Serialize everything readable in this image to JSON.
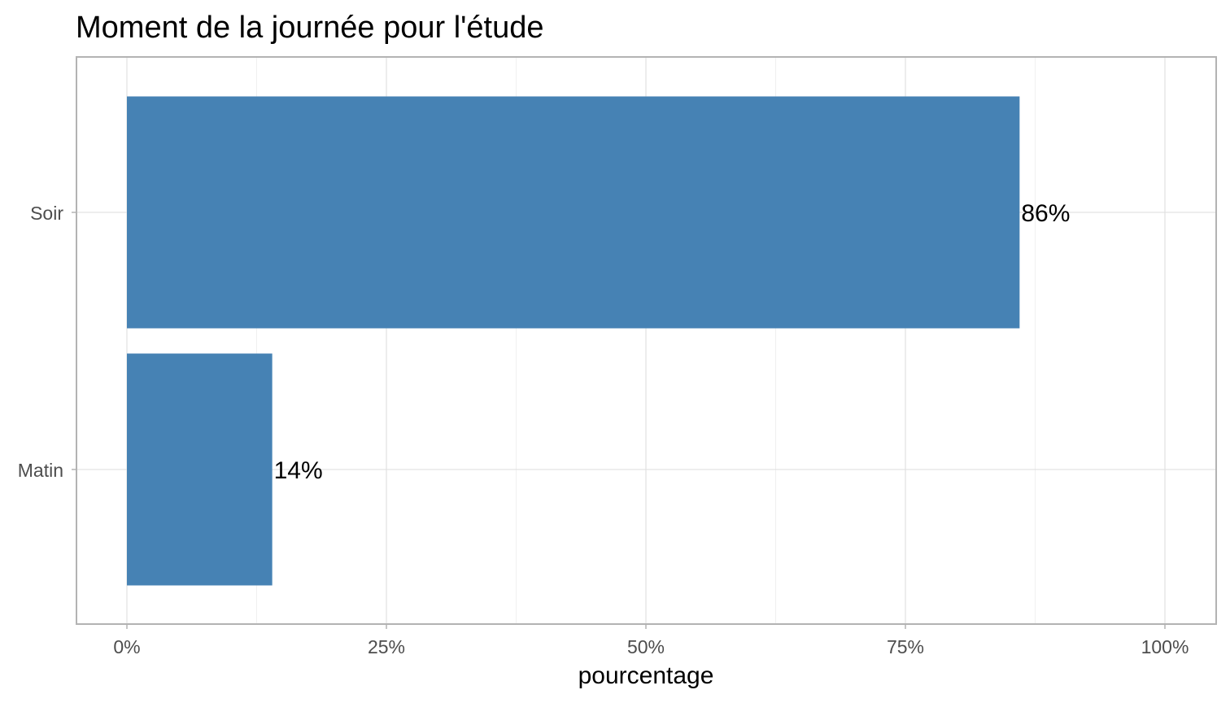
{
  "chart_data": {
    "type": "bar",
    "orientation": "horizontal",
    "title": "Moment de la journée pour l'étude",
    "xlabel": "pourcentage",
    "ylabel": "",
    "categories": [
      "Soir",
      "Matin"
    ],
    "values": [
      0.86,
      0.14
    ],
    "data_labels": [
      "86%",
      "14%"
    ],
    "xlim": [
      0,
      1
    ],
    "x_ticks": [
      0,
      0.25,
      0.5,
      0.75,
      1
    ],
    "x_tick_labels": [
      "0%",
      "25%",
      "50%",
      "75%",
      "100%"
    ],
    "grid": true,
    "legend": "none",
    "bar_color": "#4682b4"
  }
}
